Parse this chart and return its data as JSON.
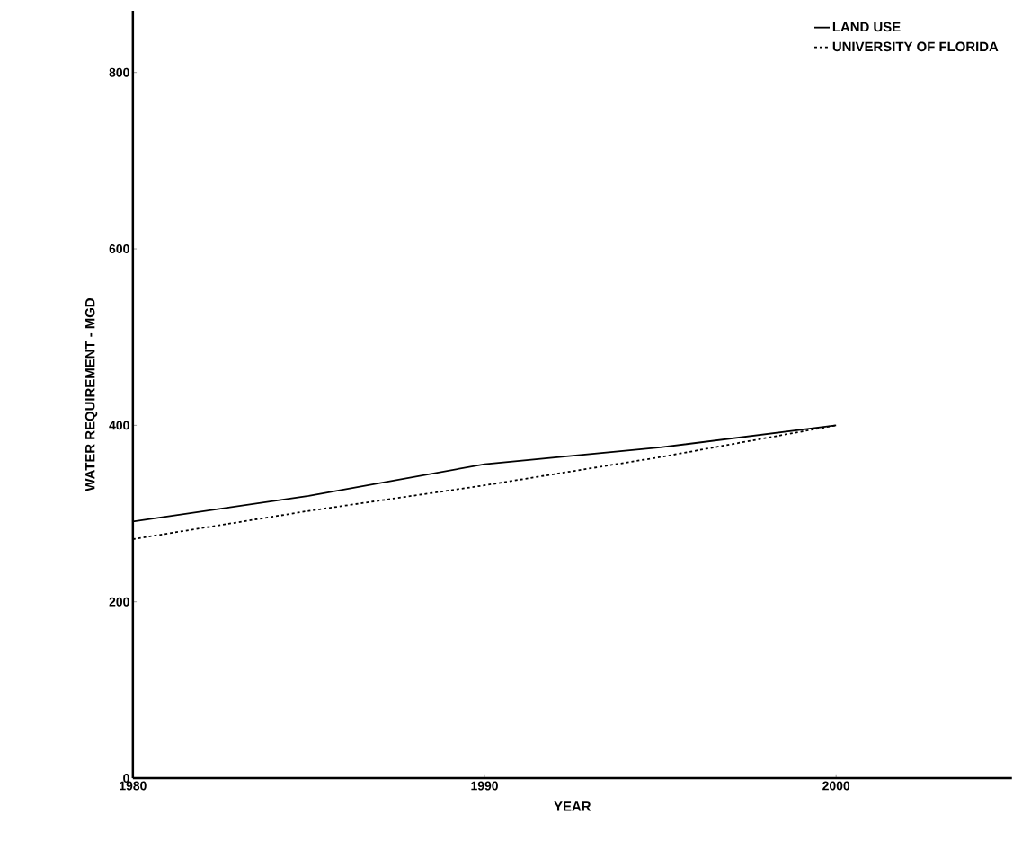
{
  "chart_data": {
    "type": "line",
    "xlabel": "YEAR",
    "ylabel": "WATER REQUIREMENT - MGD",
    "x": [
      1980,
      1985,
      1990,
      1995,
      2000
    ],
    "series": [
      {
        "name": "LAND USE",
        "color": "#000000",
        "line_style": "solid",
        "values": [
          291,
          320,
          356,
          375,
          400
        ]
      },
      {
        "name": "UNIVERSITY OF FLORIDA",
        "color": "#000000",
        "line_style": "dashed",
        "values": [
          271,
          303,
          332,
          364,
          400
        ]
      }
    ],
    "xlim": [
      1980,
      2005
    ],
    "ylim": [
      0,
      870
    ],
    "xticks": [
      1980,
      1990,
      2000
    ],
    "yticks": [
      0,
      200,
      400,
      600,
      800
    ],
    "legend": "top right",
    "grid": false
  }
}
